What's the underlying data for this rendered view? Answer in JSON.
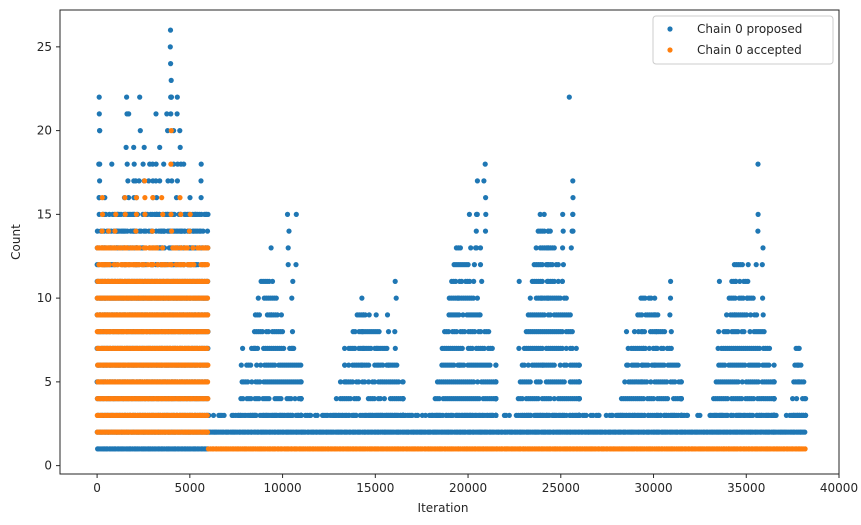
{
  "chart_data": {
    "type": "scatter",
    "title": "",
    "xlabel": "Iteration",
    "ylabel": "Count",
    "xlim": [
      -2000,
      40000
    ],
    "ylim": [
      -0.5,
      27.2
    ],
    "xticks": [
      0,
      5000,
      10000,
      15000,
      20000,
      25000,
      30000,
      35000,
      40000
    ],
    "yticks": [
      0,
      5,
      10,
      15,
      20,
      25
    ],
    "grid": false,
    "legend": {
      "position": "top-right"
    },
    "series": [
      {
        "name": "Chain 0 proposed",
        "color": "#1f77b4",
        "regions": [
          {
            "x_range": [
              0,
              6000
            ],
            "bands": [
              [
                1,
                11
              ],
              [
                12,
                15
              ]
            ],
            "sparse_tops": [
              [
                100,
                22
              ],
              [
                120,
                20
              ],
              [
                400,
                16
              ],
              [
                800,
                18
              ],
              [
                1100,
                15
              ],
              [
                1500,
                16
              ],
              [
                1600,
                22
              ],
              [
                1700,
                21
              ],
              [
                2000,
                19
              ],
              [
                2100,
                17
              ],
              [
                2300,
                22
              ],
              [
                2500,
                19
              ],
              [
                2800,
                18
              ],
              [
                3000,
                18
              ],
              [
                3200,
                21
              ],
              [
                3400,
                19
              ],
              [
                3600,
                18
              ],
              [
                3800,
                21
              ],
              [
                3950,
                26
              ],
              [
                4000,
                24
              ],
              [
                4010,
                23
              ],
              [
                4100,
                20
              ],
              [
                4300,
                22
              ],
              [
                4500,
                20
              ],
              [
                4700,
                18
              ],
              [
                5000,
                16
              ],
              [
                5300,
                15
              ],
              [
                5600,
                18
              ],
              [
                5900,
                15
              ]
            ]
          },
          {
            "x_range": [
              6000,
              38200
            ],
            "bands": [
              [
                2,
                2
              ]
            ],
            "sparse_tops": []
          },
          {
            "x_range": [
              6000,
              38200
            ],
            "bands": [
              [
                3,
                3
              ]
            ],
            "density": 0.6,
            "sparse_tops": []
          }
        ],
        "clusters": [
          {
            "x_range": [
              7000,
              11000
            ],
            "y_max": 11,
            "tops": [
              [
                7800,
                7
              ],
              [
                8500,
                7
              ],
              [
                9400,
                13
              ],
              [
                10300,
                15
              ],
              [
                10700,
                15
              ],
              [
                10500,
                11
              ]
            ]
          },
          {
            "x_range": [
              12000,
              16500
            ],
            "y_max": 9,
            "tops": [
              [
                13400,
                7
              ],
              [
                14300,
                10
              ],
              [
                15100,
                9
              ],
              [
                15700,
                9
              ],
              [
                16100,
                11
              ]
            ]
          },
          {
            "x_range": [
              17500,
              21500
            ],
            "y_max": 13,
            "tops": [
              [
                19500,
                10
              ],
              [
                20100,
                15
              ],
              [
                20400,
                15
              ],
              [
                20500,
                17
              ],
              [
                20900,
                18
              ],
              [
                20700,
                13
              ]
            ]
          },
          {
            "x_range": [
              22000,
              26000
            ],
            "y_max": 15,
            "tops": [
              [
                22700,
                11
              ],
              [
                24000,
                10
              ],
              [
                24300,
                14
              ],
              [
                25100,
                15
              ],
              [
                25500,
                22
              ],
              [
                25600,
                17
              ],
              [
                25700,
                15
              ]
            ]
          },
          {
            "x_range": [
              27500,
              31500
            ],
            "y_max": 10,
            "tops": [
              [
                28600,
                8
              ],
              [
                29400,
                8
              ],
              [
                30100,
                10
              ],
              [
                30900,
                11
              ]
            ]
          },
          {
            "x_range": [
              32500,
              36500
            ],
            "y_max": 12,
            "tops": [
              [
                33500,
                11
              ],
              [
                34400,
                11
              ],
              [
                35100,
                12
              ],
              [
                35600,
                18
              ],
              [
                35900,
                13
              ],
              [
                35500,
                12
              ]
            ]
          },
          {
            "x_range": [
              37300,
              38200
            ],
            "y_max": 7,
            "tops": [
              [
                37800,
                7
              ]
            ]
          }
        ]
      },
      {
        "name": "Chain 0 accepted",
        "color": "#ff7f0e",
        "regions": [
          {
            "x_range": [
              0,
              6000
            ],
            "bands": [
              [
                2,
                13
              ]
            ],
            "sparse_tops": [
              [
                300,
                16
              ],
              [
                600,
                14
              ],
              [
                1000,
                15
              ],
              [
                1500,
                16
              ],
              [
                2100,
                16
              ],
              [
                2600,
                17
              ],
              [
                3000,
                16
              ],
              [
                3500,
                16
              ],
              [
                4000,
                20
              ],
              [
                4500,
                16
              ],
              [
                5000,
                15
              ],
              [
                5500,
                13
              ]
            ]
          },
          {
            "x_range": [
              6000,
              38200
            ],
            "bands": [
              [
                1,
                1
              ]
            ],
            "sparse_tops": []
          }
        ],
        "clusters": []
      }
    ]
  }
}
